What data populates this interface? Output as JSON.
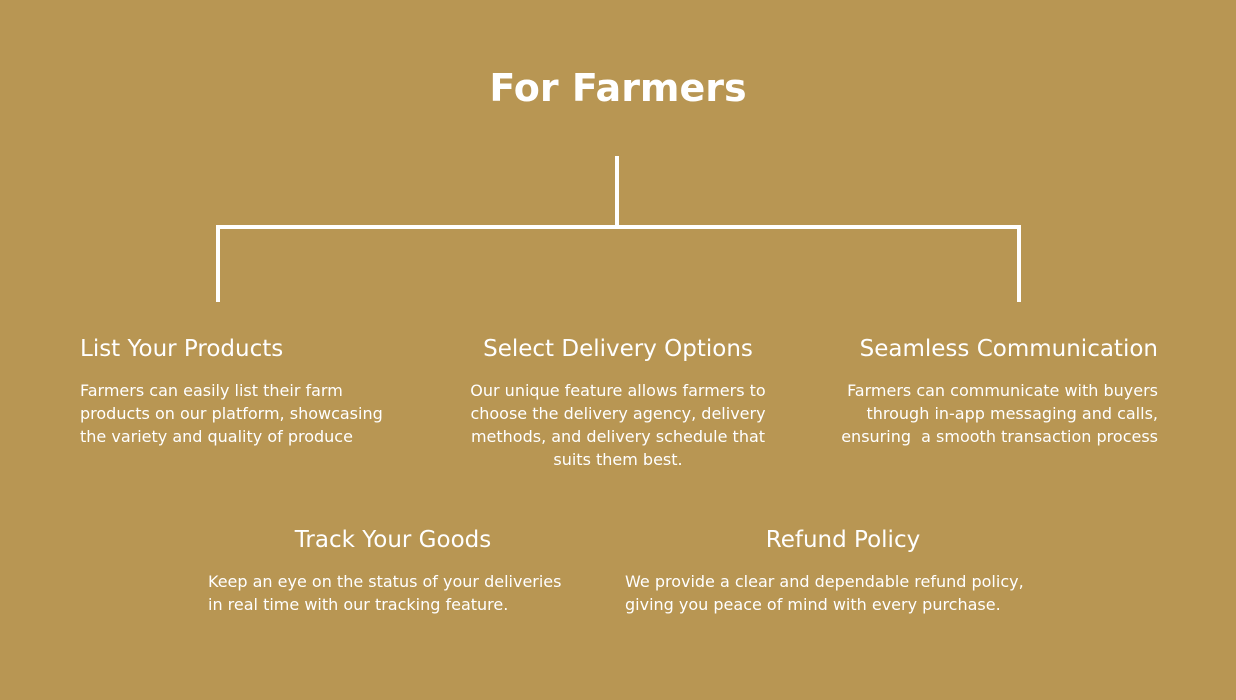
{
  "background_color": "#b89653",
  "text_color": "#ffffff",
  "line_color": "#ffffff",
  "title": "For Farmers",
  "features": [
    {
      "heading": "List Your Products",
      "lines": [
        "Farmers can easily list their farm",
        "products on our platform, showcasing",
        "the variety and quality of produce"
      ]
    },
    {
      "heading": "Select Delivery Options",
      "lines": [
        "Our unique feature allows farmers to",
        "choose the delivery agency, delivery",
        "methods, and delivery schedule that",
        "suits them best."
      ]
    },
    {
      "heading": "Seamless Communication",
      "lines": [
        "Farmers can communicate with buyers",
        "through in-app messaging and calls,",
        "ensuring  a smooth transaction process"
      ]
    },
    {
      "heading": "Track Your Goods",
      "lines": [
        "Keep an eye on the status of your deliveries",
        "in real time with our tracking feature."
      ]
    },
    {
      "heading": "Refund Policy",
      "lines": [
        "We provide a clear and dependable refund policy,",
        "giving you peace of mind with every purchase."
      ]
    }
  ]
}
